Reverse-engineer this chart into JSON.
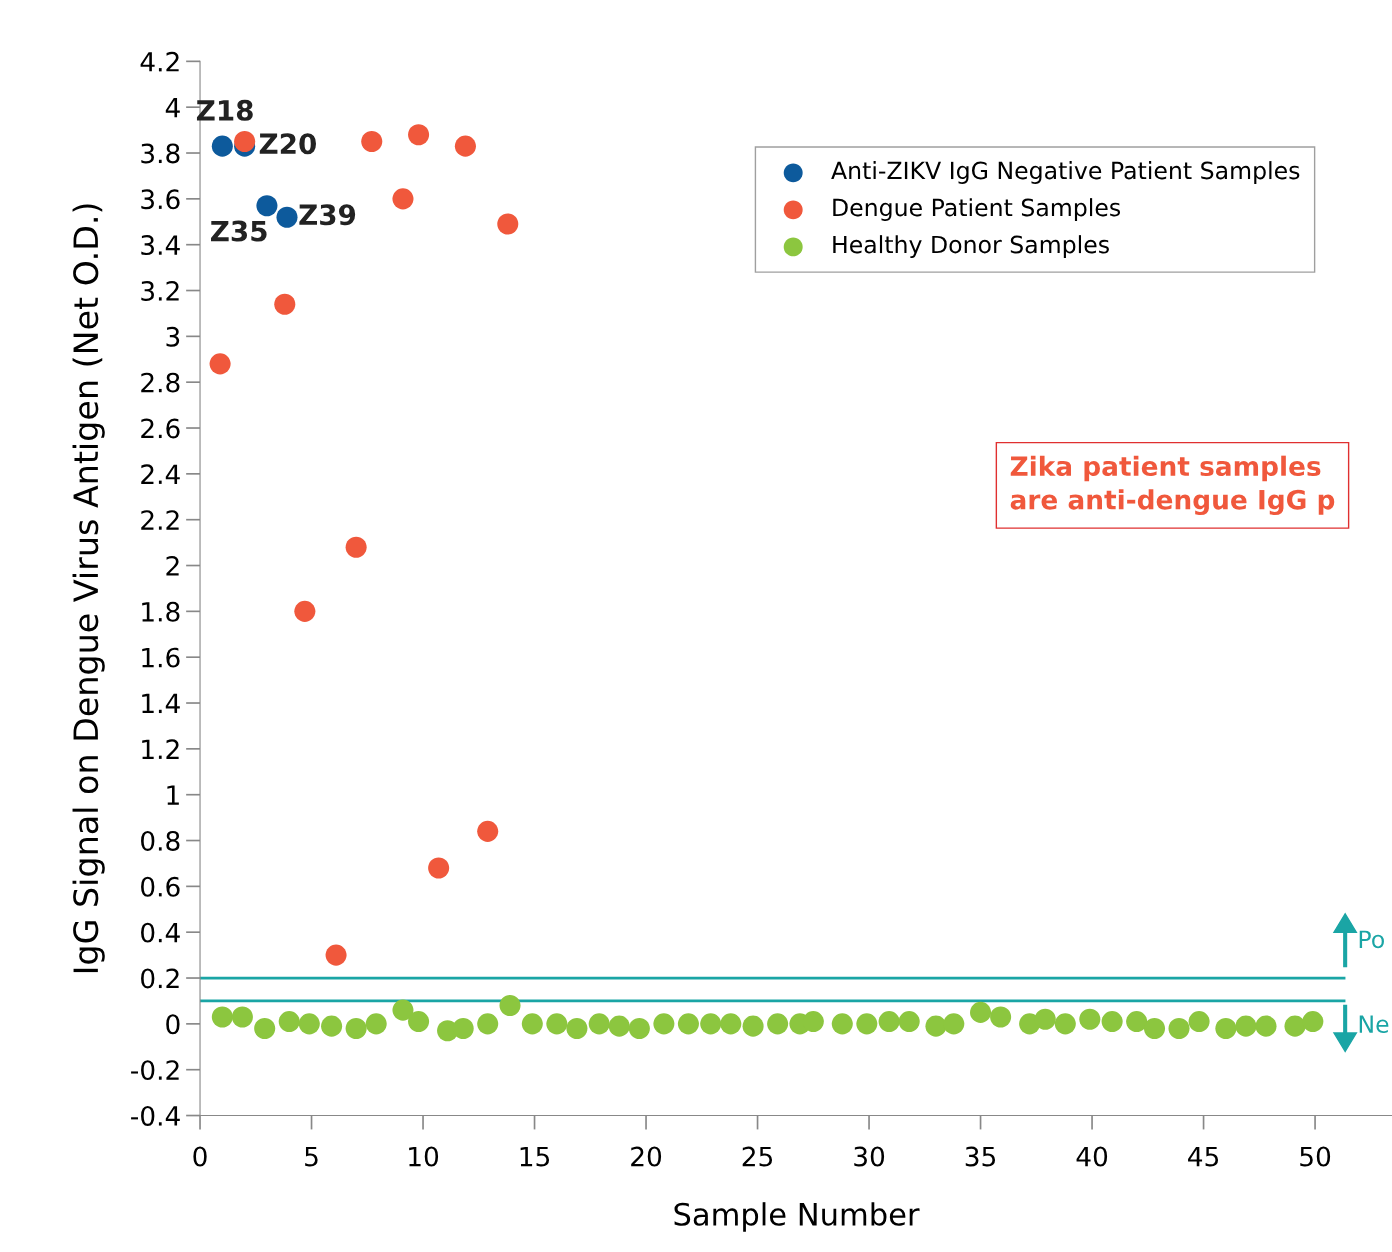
{
  "chart_data": {
    "type": "scatter",
    "xlabel": "Sample Number",
    "ylabel": "IgG Signal on Dengue Virus Antigen (Net O.D.)",
    "xlim": [
      0,
      53.45
    ],
    "xticks": [
      0,
      5,
      10,
      15,
      20,
      25,
      30,
      35,
      40,
      45,
      50
    ],
    "ylim": [
      -0.4,
      4.2
    ],
    "yticks": [
      -0.4,
      -0.2,
      0,
      0.2,
      0.4,
      0.6,
      0.8,
      1,
      1.2,
      1.4,
      1.6,
      1.8,
      2,
      2.2,
      2.4,
      2.6,
      2.8,
      3,
      3.2,
      3.4,
      3.6,
      3.8,
      4,
      4.2
    ],
    "grid": false,
    "legend": "top right",
    "marker": "circle",
    "series": [
      {
        "name": "Anti-ZIKV IgG Negative Patient Samples",
        "color": "#0d5a9c",
        "x": [
          1,
          2,
          3,
          3.9
        ],
        "values": [
          3.83,
          3.83,
          3.57,
          3.52
        ]
      },
      {
        "name": "Dengue Patient Samples",
        "color": "#f0583c",
        "x": [
          0.9,
          2,
          3.8,
          4.7,
          6.1,
          7,
          7.7,
          9.1,
          9.8,
          10.7,
          11.9,
          12.9,
          13.8
        ],
        "values": [
          2.88,
          3.85,
          3.14,
          1.8,
          0.3,
          2.08,
          3.85,
          3.6,
          3.88,
          0.68,
          3.83,
          0.84,
          3.49
        ]
      },
      {
        "name": "Healthy Donor Samples",
        "color": "#8cc63f",
        "x": [
          1,
          1.9,
          2.9,
          4,
          4.9,
          5.9,
          7,
          7.9,
          9.1,
          9.8,
          11.1,
          11.8,
          12.9,
          13.9,
          14.9,
          16,
          16.9,
          17.9,
          18.8,
          19.7,
          20.8,
          21.9,
          22.9,
          23.8,
          24.8,
          25.9,
          26.9,
          27.5,
          28.8,
          29.9,
          30.9,
          31.8,
          33,
          33.8,
          35,
          35.9,
          37.2,
          37.9,
          38.8,
          39.9,
          40.9,
          42,
          42.8,
          43.9,
          44.8,
          46,
          46.9,
          47.8,
          49.1,
          49.9
        ],
        "values": [
          0.03,
          0.03,
          -0.02,
          0.01,
          0,
          -0.01,
          -0.02,
          0,
          0.06,
          0.01,
          -0.03,
          -0.02,
          0,
          0.08,
          0,
          0,
          -0.02,
          0,
          -0.01,
          -0.02,
          0,
          0,
          0,
          0,
          -0.01,
          0,
          0,
          0.01,
          0,
          0,
          0.01,
          0.01,
          -0.01,
          0,
          0.05,
          0.03,
          0,
          0.02,
          0,
          0.02,
          0.01,
          0.01,
          -0.02,
          -0.02,
          0.01,
          -0.02,
          -0.01,
          -0.01,
          -0.01,
          0.01
        ]
      }
    ],
    "ref_lines": [
      {
        "axis": "y",
        "value": 0.2,
        "color": "#1aa5a5"
      },
      {
        "axis": "y",
        "value": 0.1,
        "color": "#1aa5a5"
      }
    ],
    "annotations": [
      {
        "text": "Z18",
        "x": 1,
        "y": 3.83
      },
      {
        "text": "Z20",
        "x": 2,
        "y": 3.83
      },
      {
        "text": "Z35",
        "x": 3,
        "y": 3.57
      },
      {
        "text": "Z39",
        "x": 3.9,
        "y": 3.52
      },
      "Zika patient samples\nare anti-dengue IgG p",
      "Po",
      "Ne"
    ]
  }
}
